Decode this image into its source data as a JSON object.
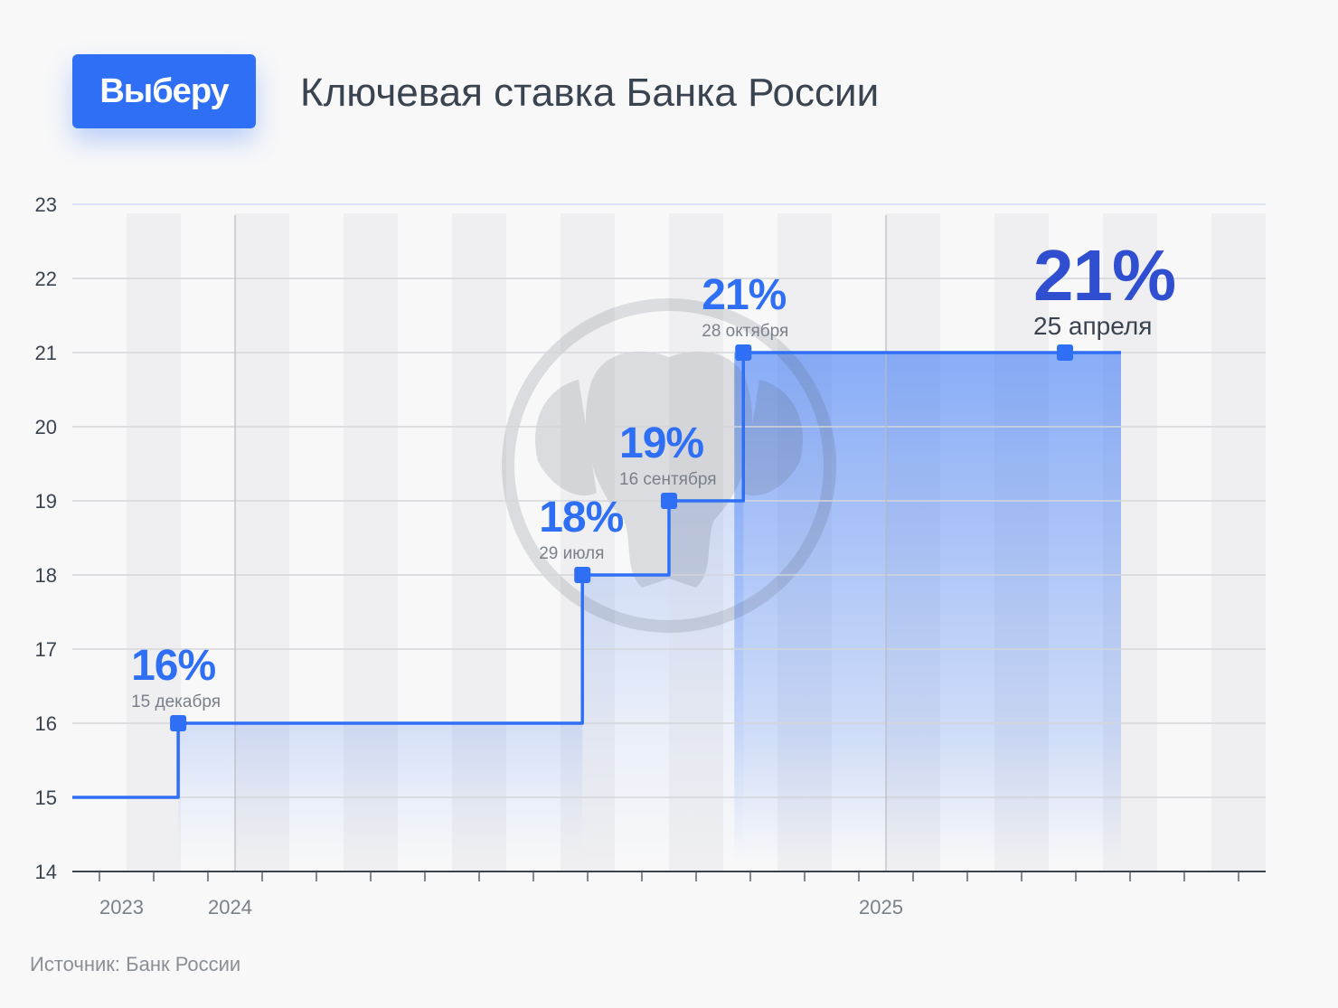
{
  "brand": {
    "logo_text": "Выберу",
    "accent_color": "#2e6ff5"
  },
  "header": {
    "title": "Ключевая ставка Банка России"
  },
  "footer": {
    "source": "Источник: Банк России"
  },
  "chart_data": {
    "type": "line",
    "step": true,
    "title": "Ключевая ставка Банка России",
    "xlabel": "",
    "ylabel": "",
    "ylim": [
      14,
      23
    ],
    "yticks": [
      14,
      15,
      16,
      17,
      18,
      19,
      20,
      21,
      22,
      23
    ],
    "x_tick_labels": [
      "2023",
      "2024",
      "2025"
    ],
    "grid": true,
    "series": [
      {
        "color": "#2e6ff5",
        "points": [
          {
            "x": "2023-11",
            "y": 15
          },
          {
            "x": "2023-12-15",
            "y": 16
          },
          {
            "x": "2024-07-29",
            "y": 18
          },
          {
            "x": "2024-09-16",
            "y": 19
          },
          {
            "x": "2024-10-28",
            "y": 21
          },
          {
            "x": "2025-04-25",
            "y": 21
          },
          {
            "x": "2025-06",
            "y": 21
          }
        ]
      }
    ],
    "annotations": [
      {
        "value": "16%",
        "date": "15 декабря"
      },
      {
        "value": "18%",
        "date": "29 июля"
      },
      {
        "value": "19%",
        "date": "16 сентября"
      },
      {
        "value": "21%",
        "date": "28 октября"
      },
      {
        "value": "21%",
        "date": "25 апреля"
      }
    ]
  }
}
